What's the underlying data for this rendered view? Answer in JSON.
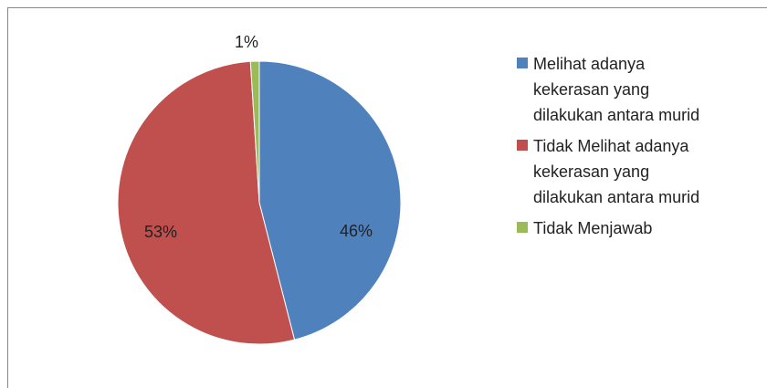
{
  "chart_data": {
    "type": "pie",
    "categories": [
      "Melihat adanya kekerasan yang dilakukan antara murid",
      "Tidak Melihat adanya kekerasan yang dilakukan antara murid",
      "Tidak Menjawab"
    ],
    "values": [
      46,
      53,
      1
    ],
    "value_labels": [
      "46%",
      "53%",
      "1%"
    ],
    "colors": [
      "#4f81bd",
      "#c0504d",
      "#9bbb59"
    ],
    "legend": "right"
  }
}
